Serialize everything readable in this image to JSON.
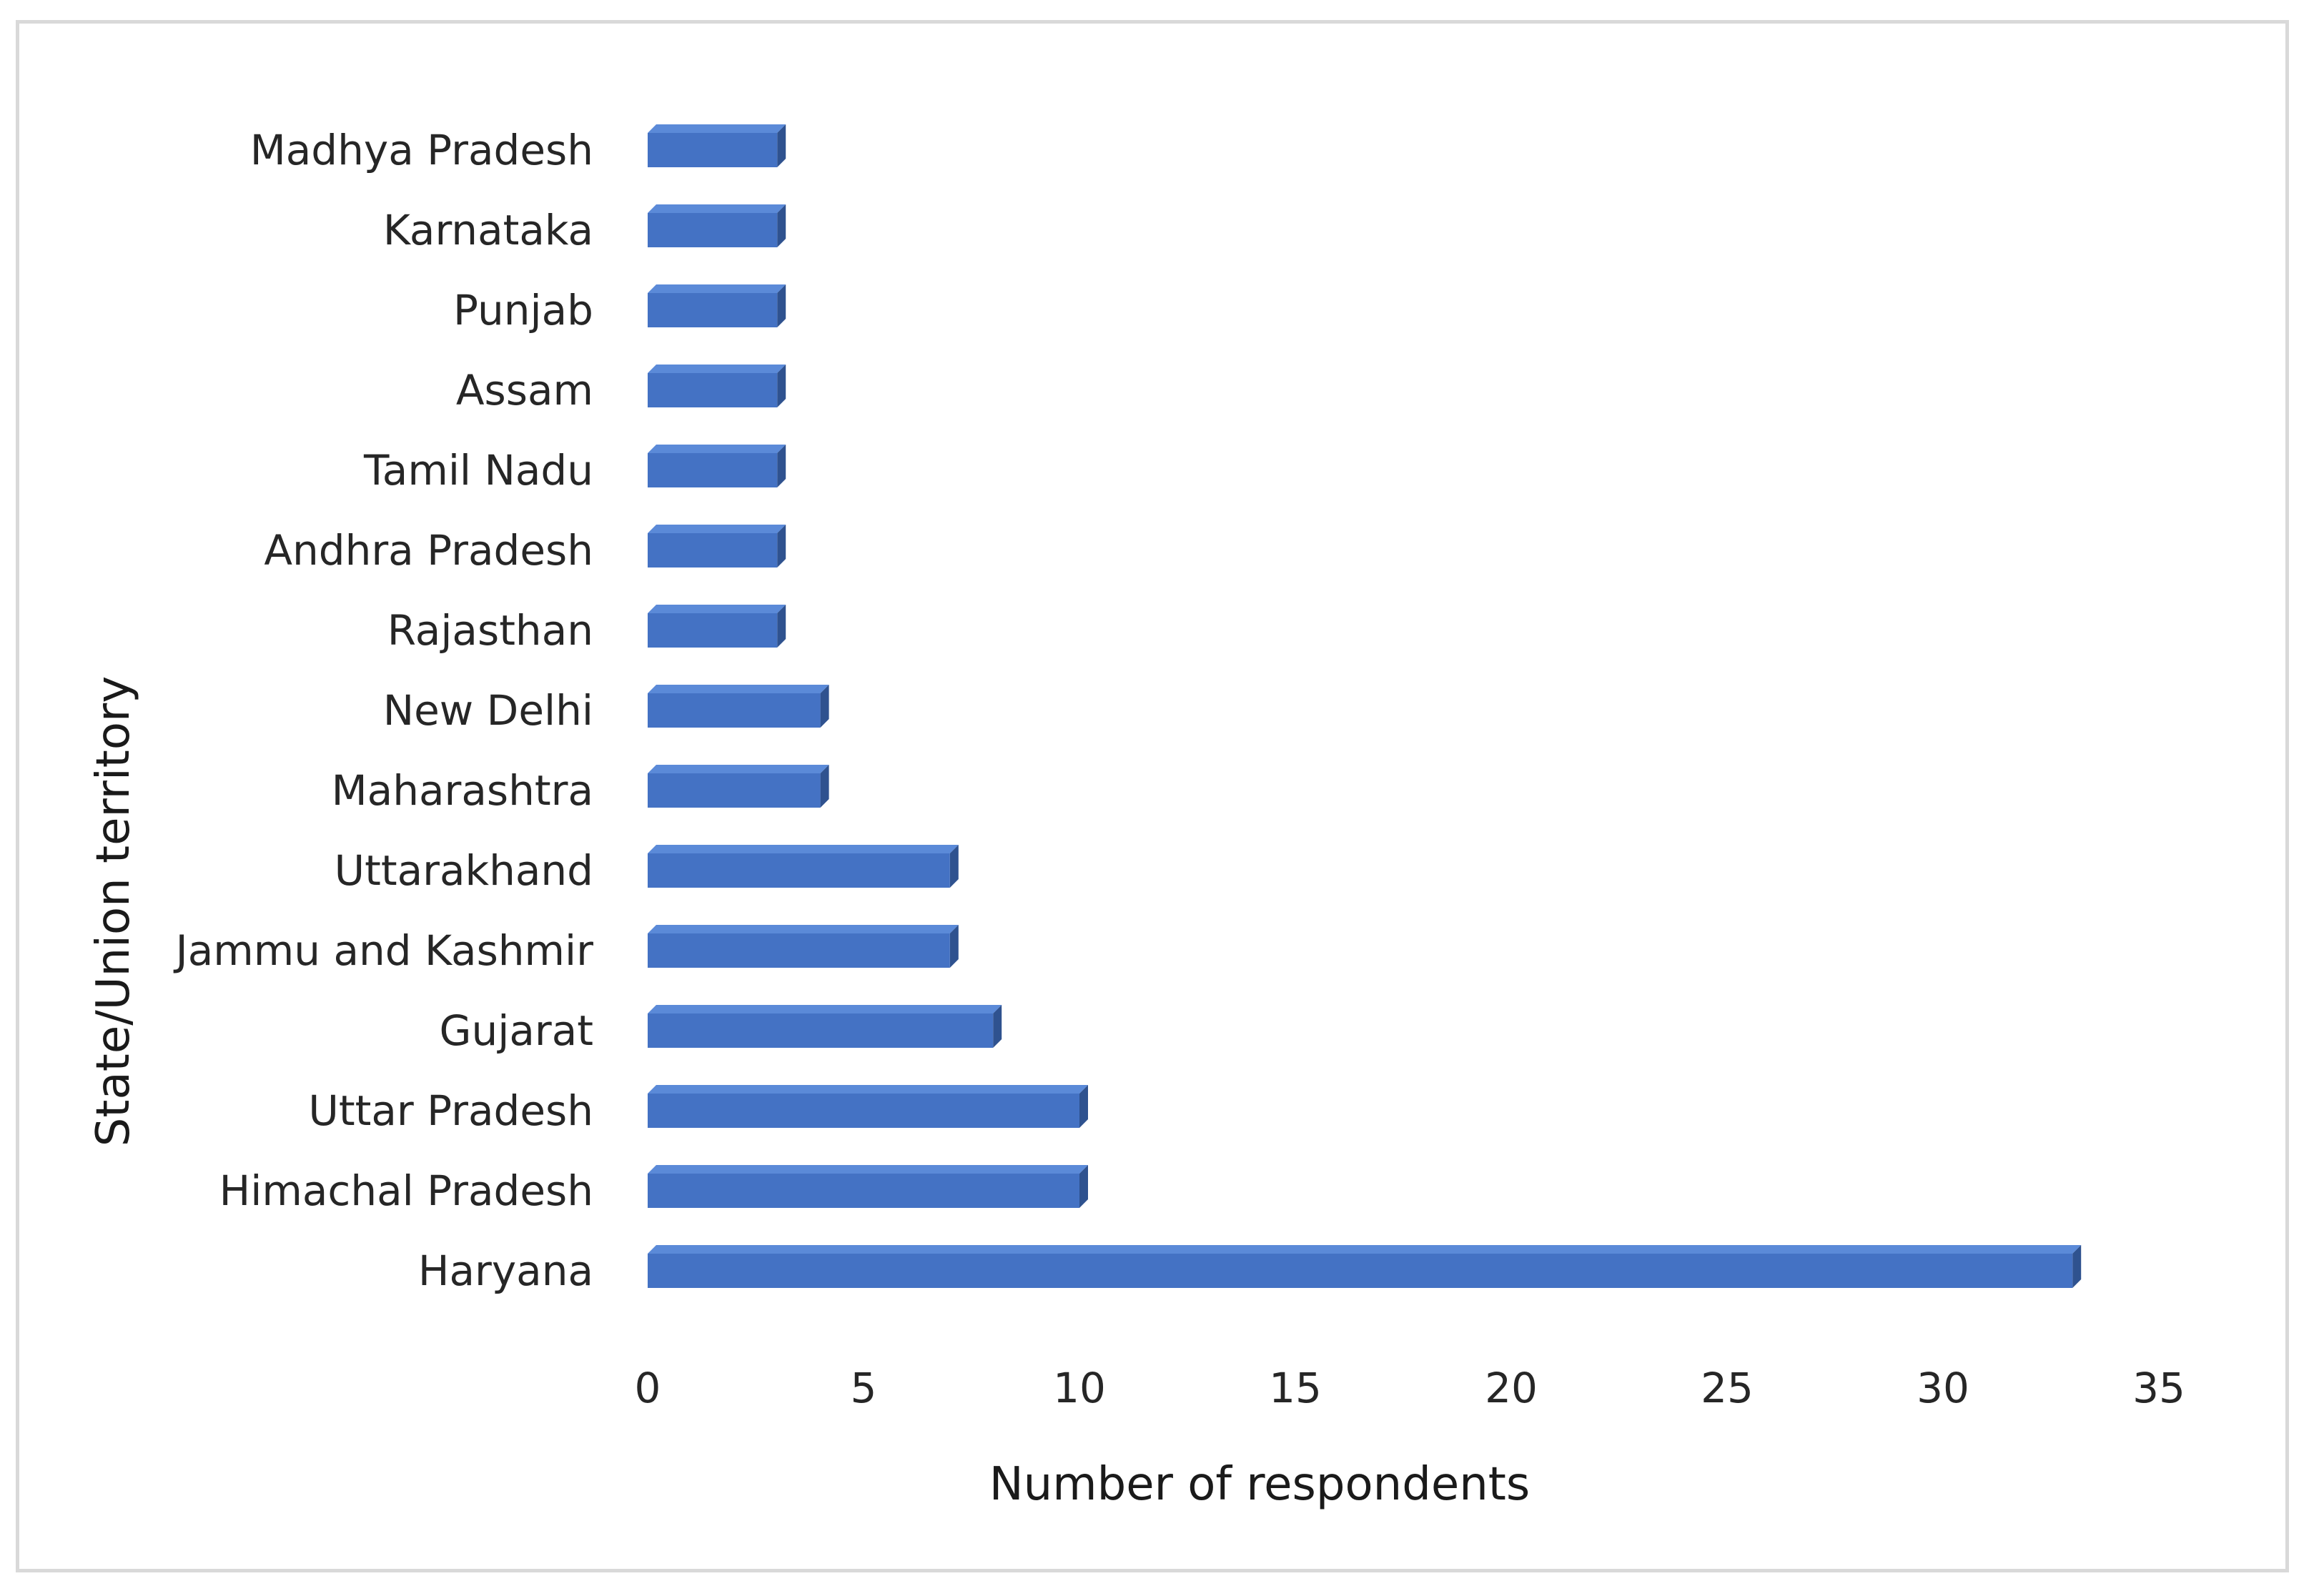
{
  "chart_data": {
    "type": "bar",
    "orientation": "horizontal",
    "style": "3d",
    "categories": [
      "Haryana",
      "Himachal Pradesh",
      "Uttar Pradesh",
      "Gujarat",
      "Jammu and Kashmir",
      "Uttarakhand",
      "Maharashtra",
      "New Delhi",
      "Rajasthan",
      "Andhra Pradesh",
      "Tamil Nadu",
      "Assam",
      "Punjab",
      "Karnataka",
      "Madhya Pradesh"
    ],
    "values": [
      33,
      10,
      10,
      8,
      7,
      7,
      4,
      4,
      3,
      3,
      3,
      3,
      3,
      3,
      3
    ],
    "xlabel": "Number of respondents",
    "ylabel": "State/Union territory",
    "xlim": [
      0,
      35
    ],
    "xticks": [
      0,
      5,
      10,
      15,
      20,
      25,
      30,
      35
    ],
    "grid": false,
    "legend": "none",
    "colors": {
      "bar_front": "#4472c4",
      "bar_top": "#5b8ad8",
      "bar_side": "#2f528f",
      "frame": "#d9d9d9",
      "text": "#262626"
    }
  }
}
